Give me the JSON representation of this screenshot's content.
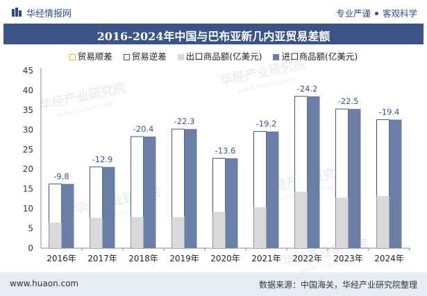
{
  "header": {
    "brand": "华经情报网",
    "tagline_left": "专业严谨",
    "tagline_right": "客观科学"
  },
  "title": "2016-2024年中国与巴布亚新几内亚贸易差额",
  "watermark": "华经产业研究院",
  "watermark_url": "www.huaon.com",
  "footer": {
    "url": "www.huaon.com",
    "source": "数据来源：中国海关，华经产业研究院整理"
  },
  "colors": {
    "import": "#6b7ea6",
    "export": "#d9d9d9",
    "balance_border": "#f0c000",
    "deficit_border": "#3b5487",
    "title_bg": "#3b5487"
  },
  "chart_data": {
    "type": "bar",
    "categories": [
      "2016年",
      "2017年",
      "2018年",
      "2019年",
      "2020年",
      "2021年",
      "2022年",
      "2023年",
      "2024年"
    ],
    "series": [
      {
        "name": "贸易顺差",
        "values": [
          0,
          0,
          0,
          0,
          0,
          0,
          0,
          0,
          0
        ]
      },
      {
        "name": "贸易逆差",
        "values": [
          -9.8,
          -12.9,
          -20.4,
          -22.3,
          -13.6,
          -19.2,
          -24.2,
          -22.5,
          -19.4
        ]
      },
      {
        "name": "出口商品额(亿美元)",
        "values": [
          6.5,
          7.7,
          7.9,
          7.9,
          9.2,
          10.4,
          14.3,
          12.8,
          13.2
        ]
      },
      {
        "name": "进口商品额(亿美元)",
        "values": [
          16.3,
          20.6,
          28.3,
          30.2,
          22.8,
          29.6,
          38.5,
          35.3,
          32.6
        ]
      }
    ],
    "data_labels": [
      "-9.8",
      "-12.9",
      "-20.4",
      "-22.3",
      "-13.6",
      "-19.2",
      "-24.2",
      "-22.5",
      "-19.4"
    ],
    "yticks": [
      "0",
      "5",
      "10",
      "15",
      "20",
      "25",
      "30",
      "35",
      "40",
      "45"
    ],
    "ylim": [
      0,
      45
    ],
    "grid": false,
    "legend_position": "top"
  }
}
